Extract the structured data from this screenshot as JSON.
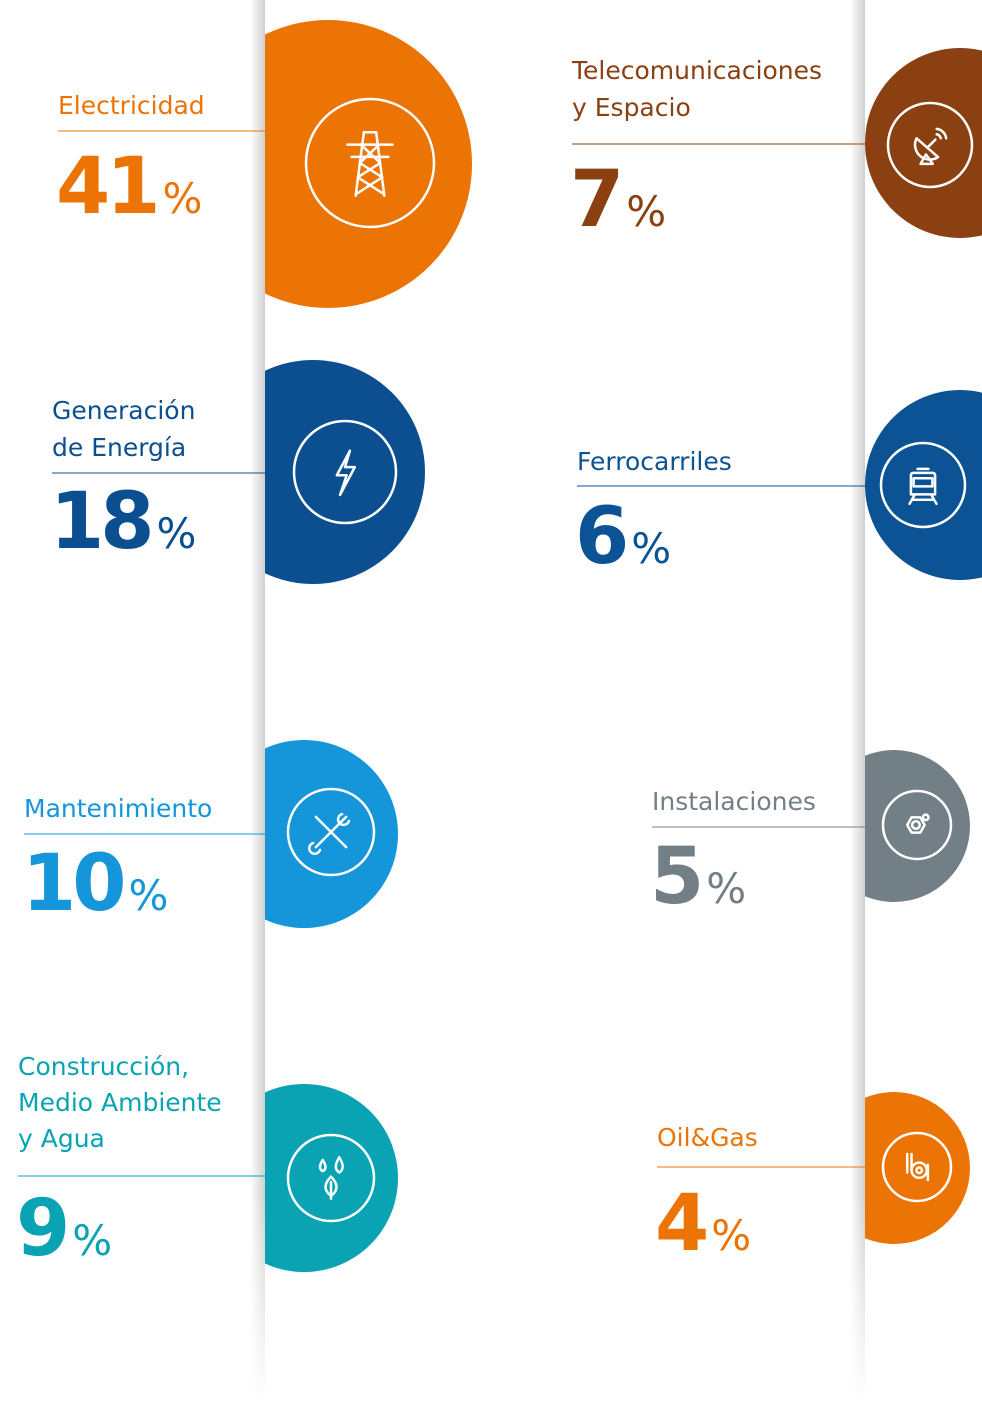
{
  "unit": "%",
  "items": [
    {
      "label": [
        "Electricidad"
      ],
      "value": 41,
      "color": "#ec7405"
    },
    {
      "label": [
        "Telecomunicaciones",
        "y Espacio"
      ],
      "value": 7,
      "color": "#8a4011"
    },
    {
      "label": [
        "Generación",
        "de Energía"
      ],
      "value": 18,
      "color": "#0b4f91"
    },
    {
      "label": [
        "Ferrocarriles"
      ],
      "value": 6,
      "color": "#0b5394"
    },
    {
      "label": [
        "Mantenimiento"
      ],
      "value": 10,
      "color": "#1596db"
    },
    {
      "label": [
        "Instalaciones"
      ],
      "value": 5,
      "color": "#737f86"
    },
    {
      "label": [
        "Construcción,",
        "Medio Ambiente",
        "y Agua"
      ],
      "value": 9,
      "color": "#0aa3b3"
    },
    {
      "label": [
        "Oil&Gas"
      ],
      "value": 4,
      "color": "#ec7405"
    }
  ]
}
